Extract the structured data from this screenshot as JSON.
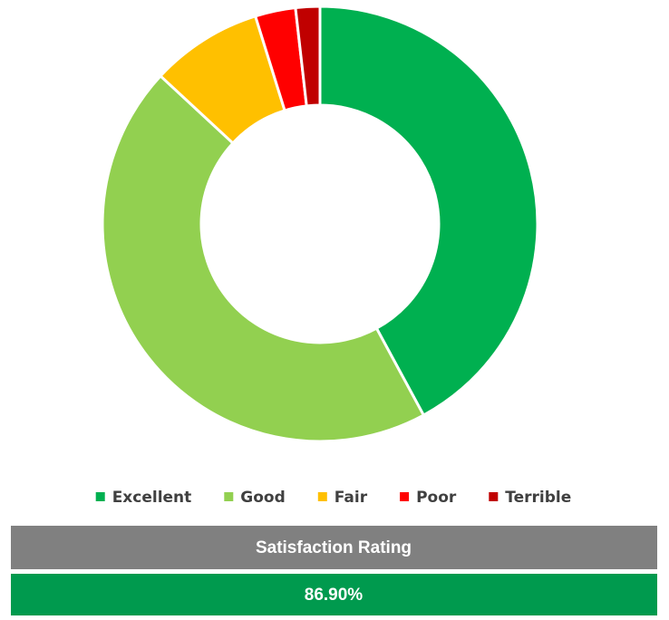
{
  "chart_data": {
    "type": "donut",
    "categories": [
      "Excellent",
      "Good",
      "Fair",
      "Poor",
      "Terrible"
    ],
    "values": [
      42.1,
      44.8,
      8.3,
      3.0,
      1.8
    ],
    "colors": [
      "#00b050",
      "#92d050",
      "#ffc000",
      "#ff0000",
      "#c00000"
    ],
    "legend": "bottom",
    "summary_title": "Satisfaction Rating",
    "summary_value": "86.90%"
  }
}
